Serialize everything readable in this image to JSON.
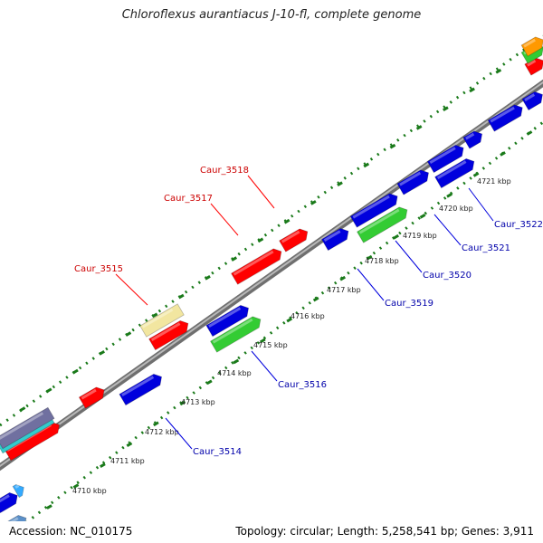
{
  "title": "Chloroflexus aurantiacus J-10-fl, complete genome",
  "footer": {
    "accession": "Accession: NC_010175",
    "topology": "Topology: circular; Length: 5,258,541 bp; Genes: 3,911"
  },
  "colors": {
    "backbone": "#8c8c8c",
    "tick": "#1a7a1a",
    "red": "#ff0000",
    "blue": "#0000dd",
    "green": "#33cc33",
    "yellow": "#f2e6a0",
    "orange": "#ff9900",
    "cyan": "#33cccc",
    "slate": "#7070a0",
    "label_red": "#cc0000",
    "label_blue": "#0000aa"
  },
  "scale_labels": [
    "4710 kbp",
    "4711 kbp",
    "4712 kbp",
    "4713 kbp",
    "4714 kbp",
    "4715 kbp",
    "4716 kbp",
    "4717 kbp",
    "4718 kbp",
    "4719 kbp",
    "4720 kbp",
    "4721 kbp"
  ],
  "gene_labels_outer": [
    "Caur_3515",
    "Caur_3517",
    "Caur_3518"
  ],
  "gene_labels_inner": [
    "Caur_3514",
    "Caur_3516",
    "Caur_3519",
    "Caur_3520",
    "Caur_3521",
    "Caur_3522"
  ]
}
